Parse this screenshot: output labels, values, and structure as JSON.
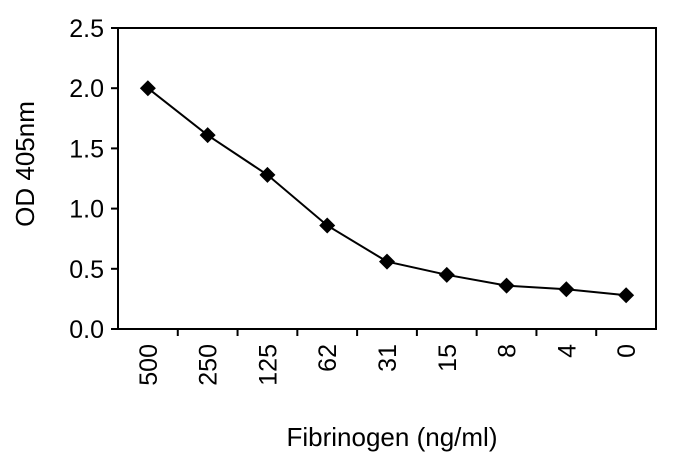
{
  "chart_data": {
    "type": "line",
    "title": "",
    "xlabel": "Fibrinogen (ng/ml)",
    "ylabel": "OD 405nm",
    "categories": [
      "500",
      "250",
      "125",
      "62",
      "31",
      "15",
      "8",
      "4",
      "0"
    ],
    "series": [
      {
        "values": [
          2.0,
          1.61,
          1.28,
          0.86,
          0.56,
          0.45,
          0.36,
          0.33,
          0.28
        ]
      }
    ],
    "ylim": [
      0.0,
      2.5
    ],
    "yticks": [
      "0.0",
      "0.5",
      "1.0",
      "1.5",
      "2.0",
      "2.5"
    ],
    "grid": false,
    "marker": "diamond",
    "colors": {
      "line": "#000000",
      "marker": "#000000",
      "axis": "#000000"
    }
  }
}
